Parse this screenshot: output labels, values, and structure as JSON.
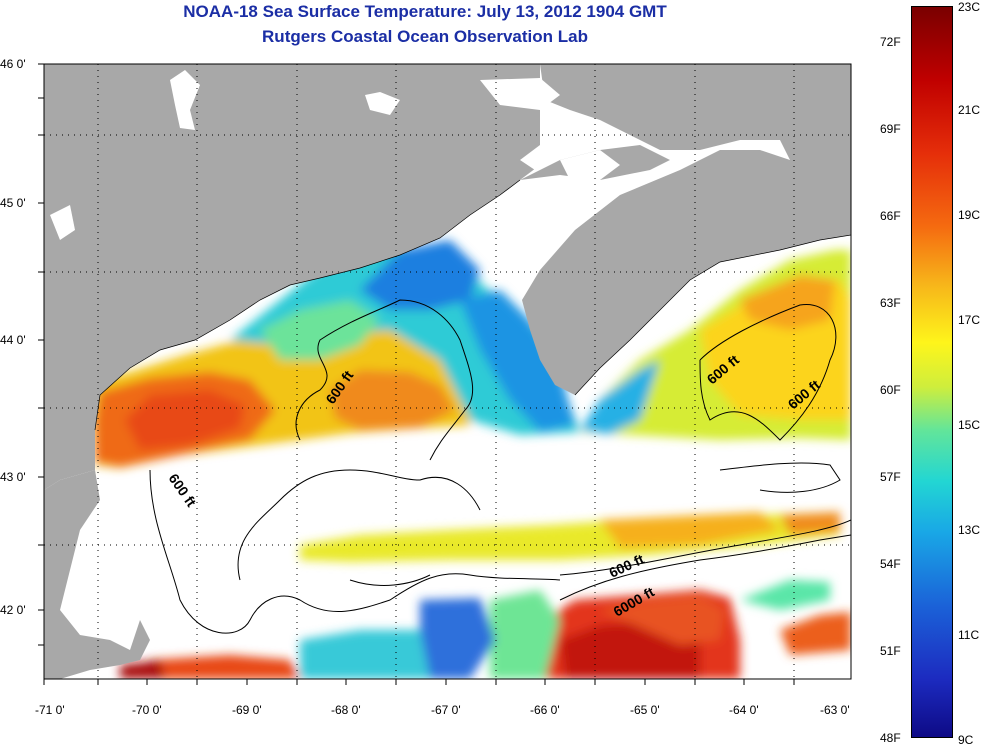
{
  "title": "NOAA-18 Sea Surface Temperature:  July 13, 2012 1904 GMT",
  "subtitle": "Rutgers Coastal Ocean Observation Lab",
  "map": {
    "lon_range": [
      -71,
      -63
    ],
    "lat_range": [
      41.5,
      46
    ],
    "lon_ticks": [
      "-71 0'",
      "-70 0'",
      "-69 0'",
      "-68 0'",
      "-67 0'",
      "-66 0'",
      "-65 0'",
      "-64 0'",
      "-63 0'"
    ],
    "lat_ticks": [
      "46 0'",
      "45 0'",
      "44 0'",
      "43 0'",
      "42 0'"
    ],
    "grid": "dotted",
    "contour_labels": [
      "600 ft",
      "600 ft",
      "600 ft",
      "600 ft",
      "600 ft",
      "6000 ft"
    ],
    "colors": {
      "land": "#a8a8a8",
      "cloud": "#ffffff",
      "contour": "#000000"
    }
  },
  "colorbar": {
    "fahrenheit": [
      "72F",
      "69F",
      "66F",
      "63F",
      "60F",
      "57F",
      "54F",
      "51F",
      "48F"
    ],
    "celsius": [
      "23C",
      "21C",
      "19C",
      "17C",
      "15C",
      "13C",
      "11C",
      "9C"
    ]
  }
}
